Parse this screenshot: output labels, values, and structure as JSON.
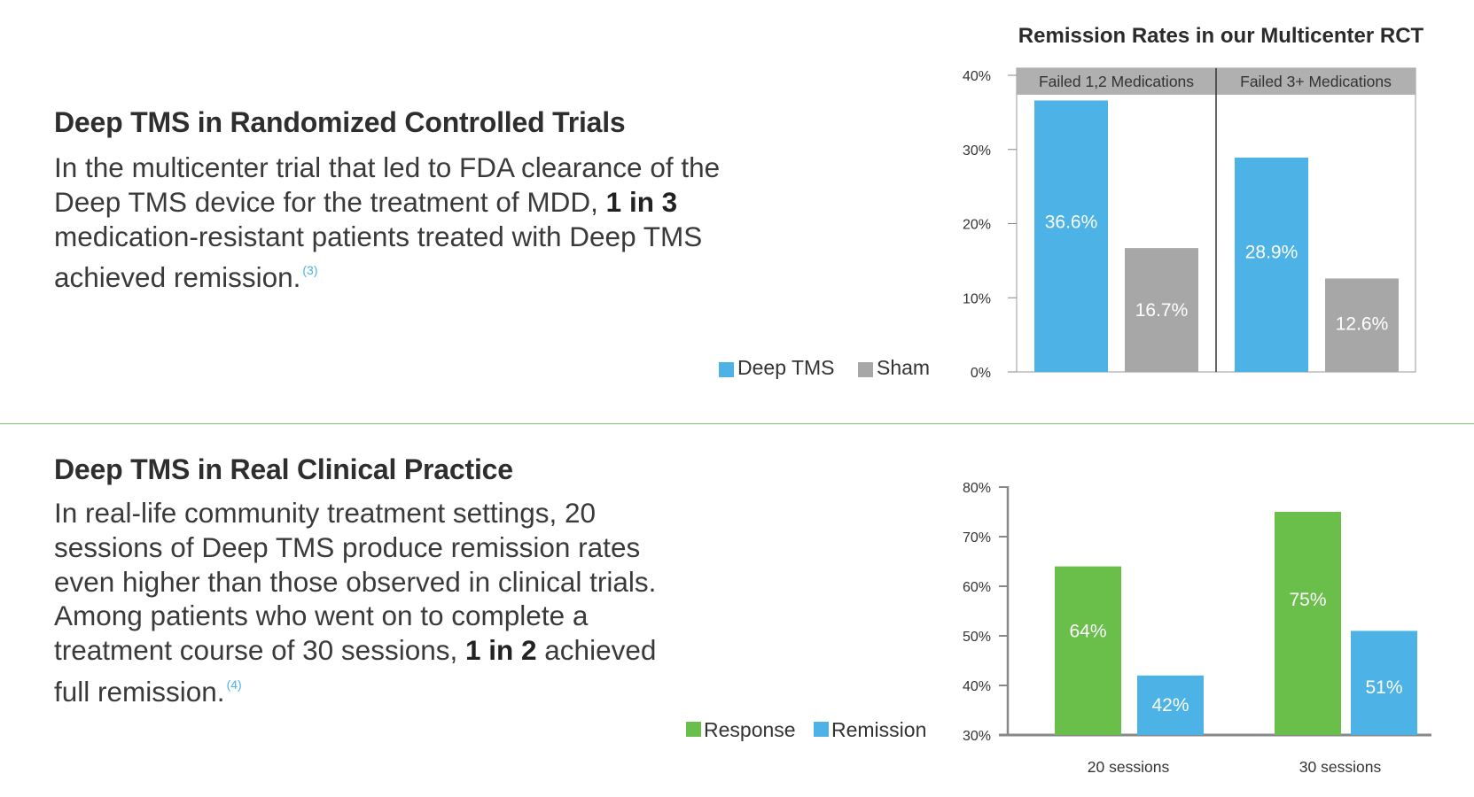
{
  "colors": {
    "deep_tms": "#4db3e6",
    "sham": "#a7a7a7",
    "response": "#6abf4b",
    "remission": "#4db3e6",
    "panel_header": "#b0b0b0",
    "divider": "#7dc96a",
    "axis": "#888888"
  },
  "rct_section": {
    "title": "Deep TMS in Randomized Controlled Trials",
    "body_part1": "In the multicenter trial that led to FDA clearance of the Deep TMS device for the treatment of MDD, ",
    "body_bold": "1 in 3",
    "body_part2": " medication-resistant patients treated with Deep TMS achieved remission.",
    "citation": "(3)"
  },
  "clinical_section": {
    "title": "Deep TMS in Real Clinical Practice",
    "body_part1": "In real-life community treatment settings, 20 sessions of Deep TMS produce remission rates even higher than those observed in clinical trials. Among patients who went on to complete a treatment course of 30 sessions, ",
    "body_bold": "1 in 2",
    "body_part2": " achieved full remission.",
    "citation": "(4)"
  },
  "chart_data": [
    {
      "type": "bar",
      "title": "Remission Rates in our Multicenter RCT",
      "categories": [
        "Failed 1,2 Medications",
        "Failed 3+ Medications"
      ],
      "series": [
        {
          "name": "Deep TMS",
          "values": [
            36.6,
            28.9
          ],
          "labels": [
            "36.6%",
            "28.9%"
          ]
        },
        {
          "name": "Sham",
          "values": [
            16.7,
            12.6
          ],
          "labels": [
            "16.7%",
            "12.6%"
          ]
        }
      ],
      "ylim": [
        0,
        40
      ],
      "yticks": [
        0,
        10,
        20,
        30,
        40
      ],
      "ytick_labels": [
        "0%",
        "10%",
        "20%",
        "30%",
        "40%"
      ],
      "legend": "bottom-left",
      "grid": false
    },
    {
      "type": "bar",
      "title": "",
      "categories": [
        "20 sessions",
        "30 sessions"
      ],
      "series": [
        {
          "name": "Response",
          "values": [
            64,
            75
          ],
          "labels": [
            "64%",
            "75%"
          ]
        },
        {
          "name": "Remission",
          "values": [
            42,
            51
          ],
          "labels": [
            "42%",
            "51%"
          ]
        }
      ],
      "ylim": [
        30,
        80
      ],
      "yticks": [
        30,
        40,
        50,
        60,
        70,
        80
      ],
      "ytick_labels": [
        "30%",
        "40%",
        "50%",
        "60%",
        "70%",
        "80%"
      ],
      "legend": "bottom-left",
      "grid": false
    }
  ]
}
